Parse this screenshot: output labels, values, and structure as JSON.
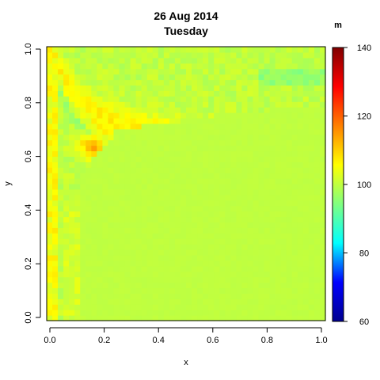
{
  "chart_data": {
    "type": "heatmap",
    "title": "26 Aug 2014",
    "subtitle": "Tuesday",
    "xlabel": "x",
    "ylabel": "y",
    "xlim": [
      0,
      1
    ],
    "ylim": [
      0,
      1
    ],
    "x_ticks": [
      "0.0",
      "0.2",
      "0.4",
      "0.6",
      "0.8",
      "1.0"
    ],
    "y_ticks": [
      "0.0",
      "0.2",
      "0.4",
      "0.6",
      "0.8",
      "1.0"
    ],
    "grid": false,
    "legend": {
      "title": "m",
      "placement": "right",
      "range": [
        60,
        140
      ],
      "ticks": [
        "60",
        "80",
        "100",
        "120",
        "140"
      ],
      "colors": [
        "#00008F",
        "#0000FF",
        "#00FFFF",
        "#80FF80",
        "#FFFF00",
        "#FF8000",
        "#FF0000",
        "#800000"
      ]
    },
    "grid_size": [
      50,
      50
    ],
    "background_value": 100
  }
}
